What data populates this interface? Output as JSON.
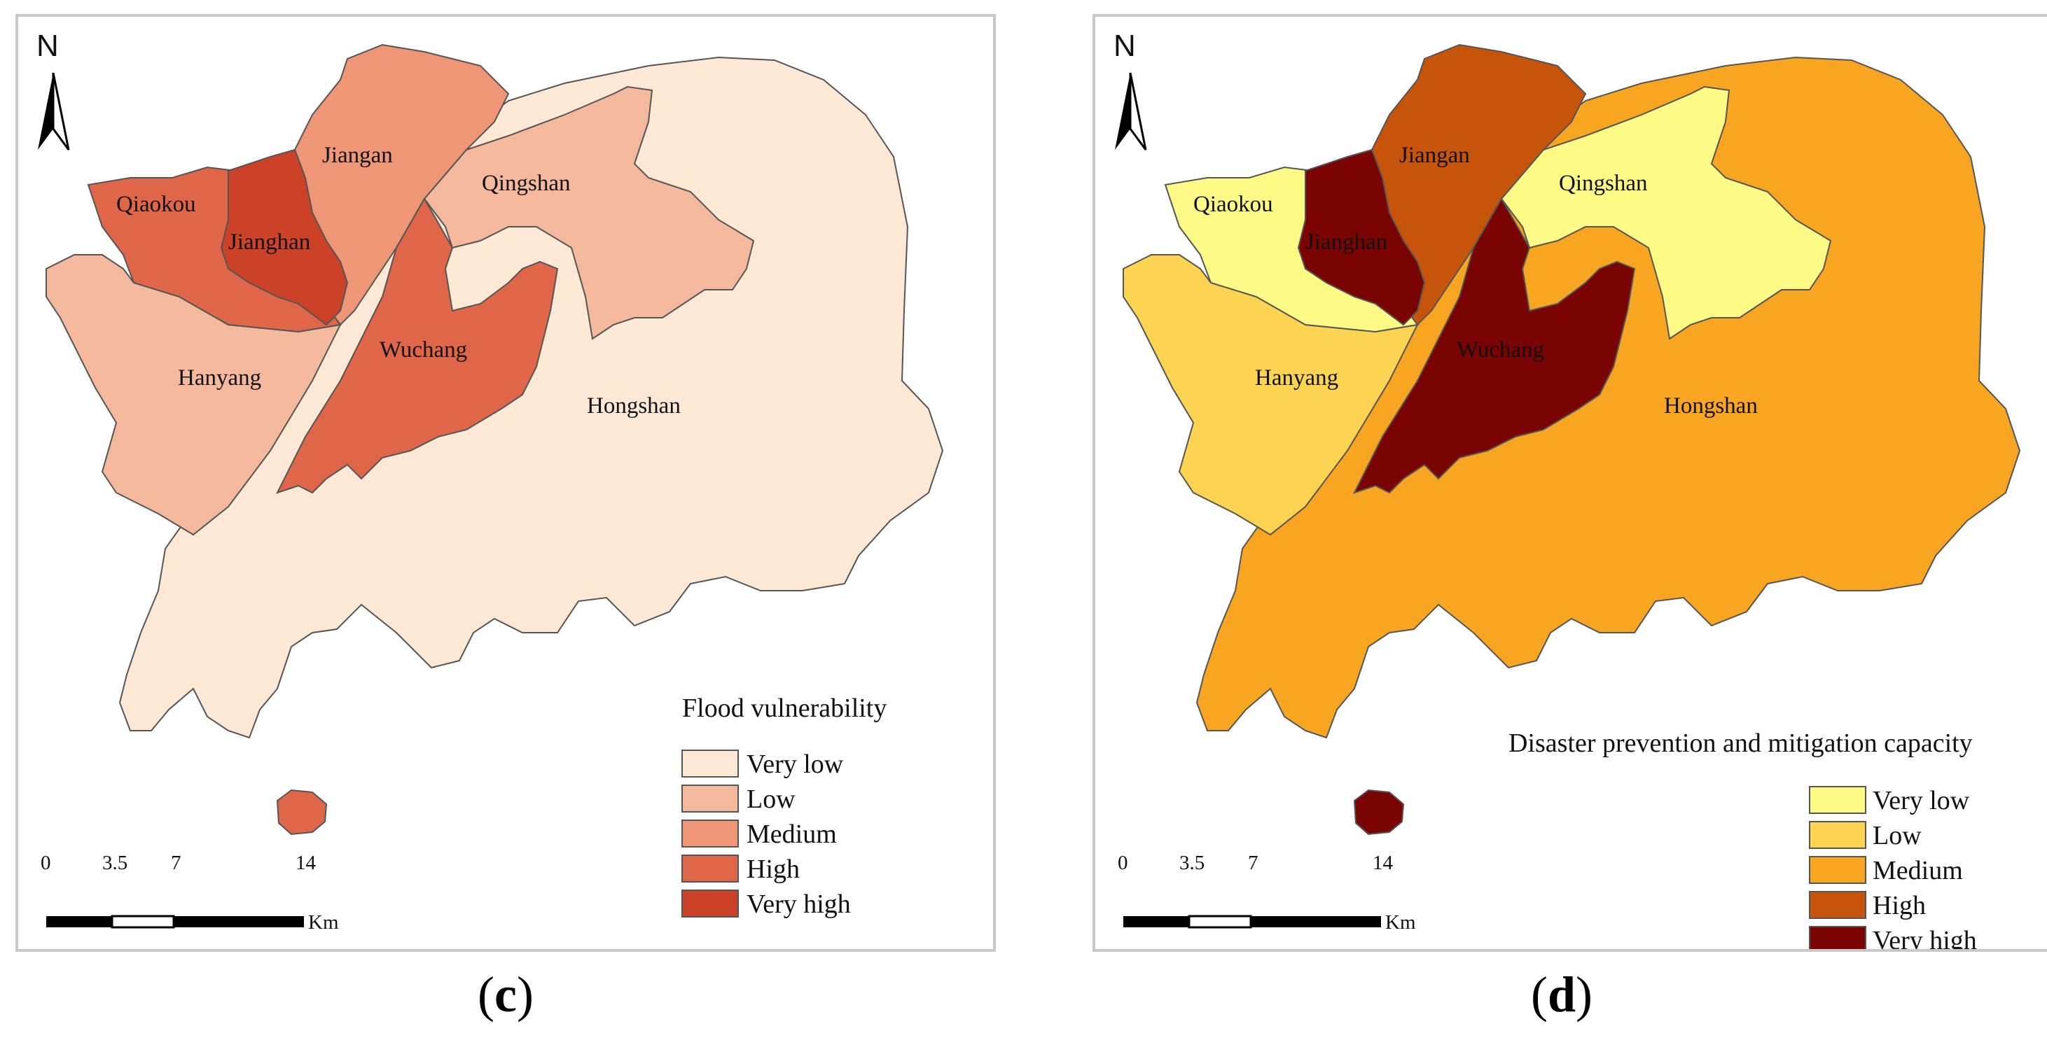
{
  "panels": [
    {
      "caption": "c",
      "legend_title": "Flood vulnerability",
      "colors": [
        "#fde8d6",
        "#f4b99c",
        "#ee9675",
        "#e0664a",
        "#cc4229"
      ],
      "district_classes": {
        "Qiaokou": "High",
        "Jianghan": "Very high",
        "Jiangan": "Medium",
        "Qingshan": "Low",
        "Hanyang": "Low",
        "Wuchang": "High",
        "Hongshan": "Very low",
        "Island": "High"
      }
    },
    {
      "caption": "d",
      "legend_title": "Disaster prevention and mitigation capacity",
      "colors": [
        "#fdfb85",
        "#fdd452",
        "#f8a621",
        "#c6540b",
        "#7a0303"
      ],
      "district_classes": {
        "Qiaokou": "Very low",
        "Jianghan": "Very high",
        "Jiangan": "High",
        "Qingshan": "Very low",
        "Hanyang": "Low",
        "Wuchang": "Very high",
        "Hongshan": "Medium",
        "Island": "Very high"
      }
    }
  ],
  "classes": [
    "Very low",
    "Low",
    "Medium",
    "High",
    "Very high"
  ],
  "district_names": {
    "Qiaokou": "Qiaokou",
    "Jianghan": "Jianghan",
    "Jiangan": "Jiangan",
    "Qingshan": "Qingshan",
    "Hanyang": "Hanyang",
    "Wuchang": "Wuchang",
    "Hongshan": "Hongshan"
  },
  "north_label": "N",
  "scale_bar": {
    "ticks": [
      "0",
      "3.5",
      "7",
      "14"
    ],
    "unit": "Km"
  }
}
